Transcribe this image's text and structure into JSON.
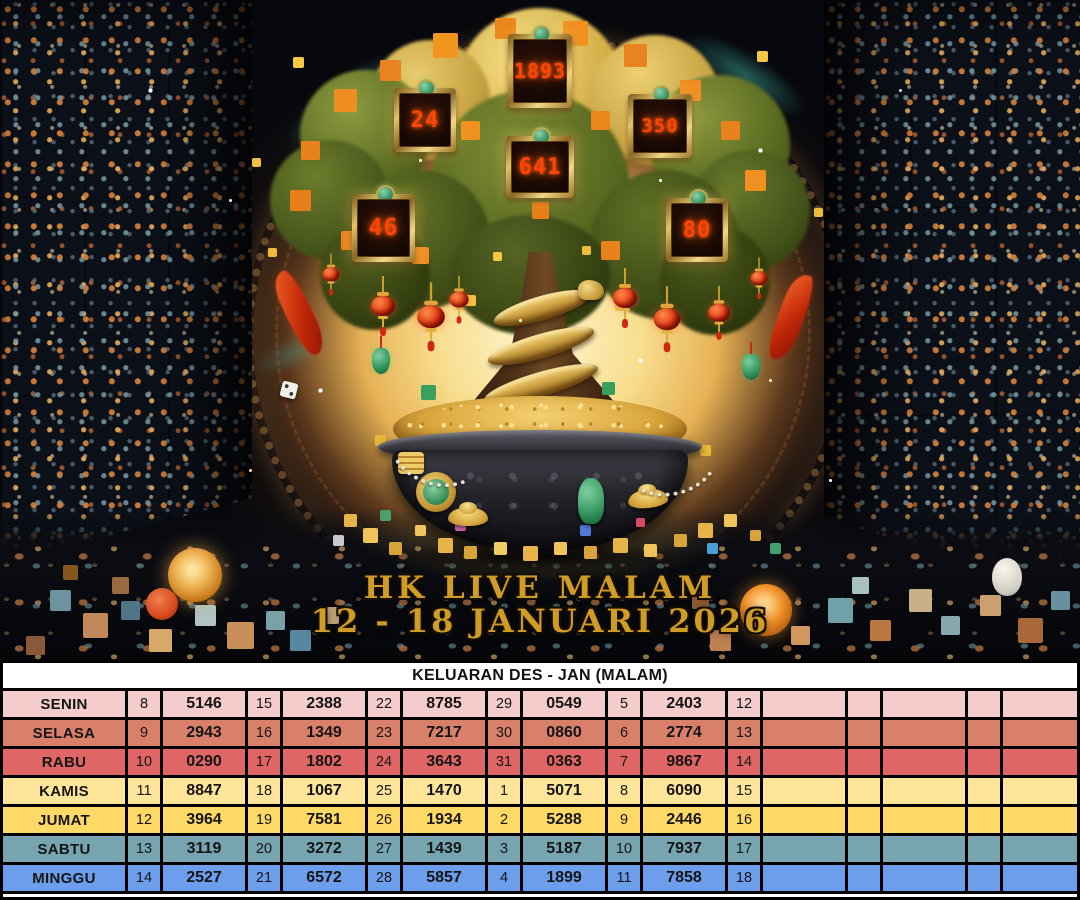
{
  "scene": {
    "title_line1": "HK LIVE MALAM",
    "title_line2": "12 - 18 JANUARI 2026",
    "digit_color": "#ff4408",
    "title_color": "#cf9d26",
    "plaques": [
      {
        "value": "1893"
      },
      {
        "value": "24"
      },
      {
        "value": "350"
      },
      {
        "value": "641"
      },
      {
        "value": "46"
      },
      {
        "value": "80"
      }
    ]
  },
  "table": {
    "header": "KELUARAN DES - JAN (MALAM)",
    "rows": [
      {
        "day": "SENIN",
        "color": "#f4cccc",
        "cells": [
          "8",
          "5146",
          "15",
          "2388",
          "22",
          "8785",
          "29",
          "0549",
          "5",
          "2403",
          "12",
          "",
          "",
          "",
          "",
          ""
        ]
      },
      {
        "day": "SELASA",
        "color": "#d9806b",
        "cells": [
          "9",
          "2943",
          "16",
          "1349",
          "23",
          "7217",
          "30",
          "0860",
          "6",
          "2774",
          "13",
          "",
          "",
          "",
          "",
          ""
        ]
      },
      {
        "day": "RABU",
        "color": "#e06666",
        "cells": [
          "10",
          "0290",
          "17",
          "1802",
          "24",
          "3643",
          "31",
          "0363",
          "7",
          "9867",
          "14",
          "",
          "",
          "",
          "",
          ""
        ]
      },
      {
        "day": "KAMIS",
        "color": "#ffe599",
        "cells": [
          "11",
          "8847",
          "18",
          "1067",
          "25",
          "1470",
          "1",
          "5071",
          "8",
          "6090",
          "15",
          "",
          "",
          "",
          "",
          ""
        ]
      },
      {
        "day": "JUMAT",
        "color": "#ffd966",
        "cells": [
          "12",
          "3964",
          "19",
          "7581",
          "26",
          "1934",
          "2",
          "5288",
          "9",
          "2446",
          "16",
          "",
          "",
          "",
          "",
          ""
        ]
      },
      {
        "day": "SABTU",
        "color": "#76a5af",
        "cells": [
          "13",
          "3119",
          "20",
          "3272",
          "27",
          "1439",
          "3",
          "5187",
          "10",
          "7937",
          "17",
          "",
          "",
          "",
          "",
          ""
        ]
      },
      {
        "day": "MINGGU",
        "color": "#6d9eeb",
        "cells": [
          "14",
          "2527",
          "21",
          "6572",
          "28",
          "5857",
          "4",
          "1899",
          "11",
          "7858",
          "18",
          "",
          "",
          "",
          "",
          ""
        ]
      }
    ]
  }
}
